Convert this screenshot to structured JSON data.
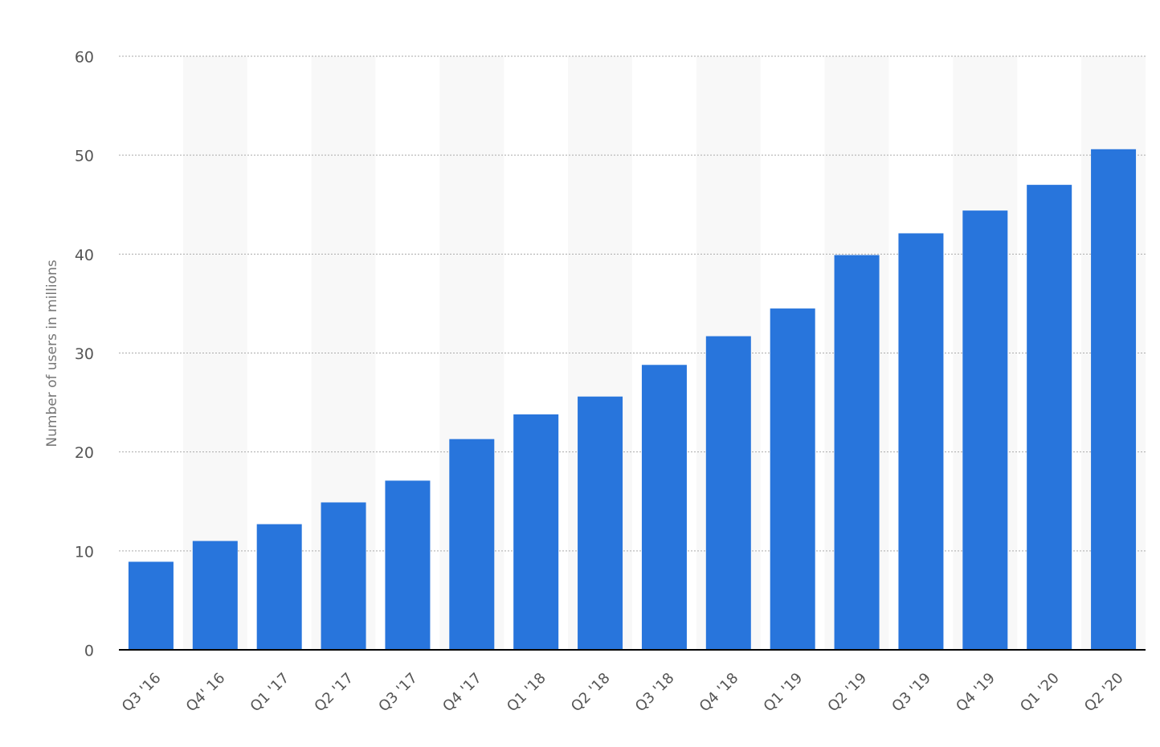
{
  "chart_data": {
    "type": "bar",
    "y_label": "Number of users in millions",
    "categories": [
      "Q3 '16",
      "Q4' 16",
      "Q1 '17",
      "Q2 '17",
      "Q3 '17",
      "Q4 '17",
      "Q1 '18",
      "Q2 '18",
      "Q3 '18",
      "Q4 '18",
      "Q1 '19",
      "Q2 '19",
      "Q3 '19",
      "Q4 '19",
      "Q1 '20",
      "Q2 '20"
    ],
    "values": [
      8.9,
      11,
      12.7,
      14.9,
      17.1,
      21.3,
      23.8,
      25.6,
      28.8,
      31.7,
      34.5,
      39.9,
      42.1,
      44.4,
      47,
      50.6
    ],
    "color": "#2875dc",
    "ylim": [
      0,
      60
    ],
    "yticks": [
      0,
      10,
      20,
      30,
      40,
      50,
      60
    ],
    "grid": true
  }
}
